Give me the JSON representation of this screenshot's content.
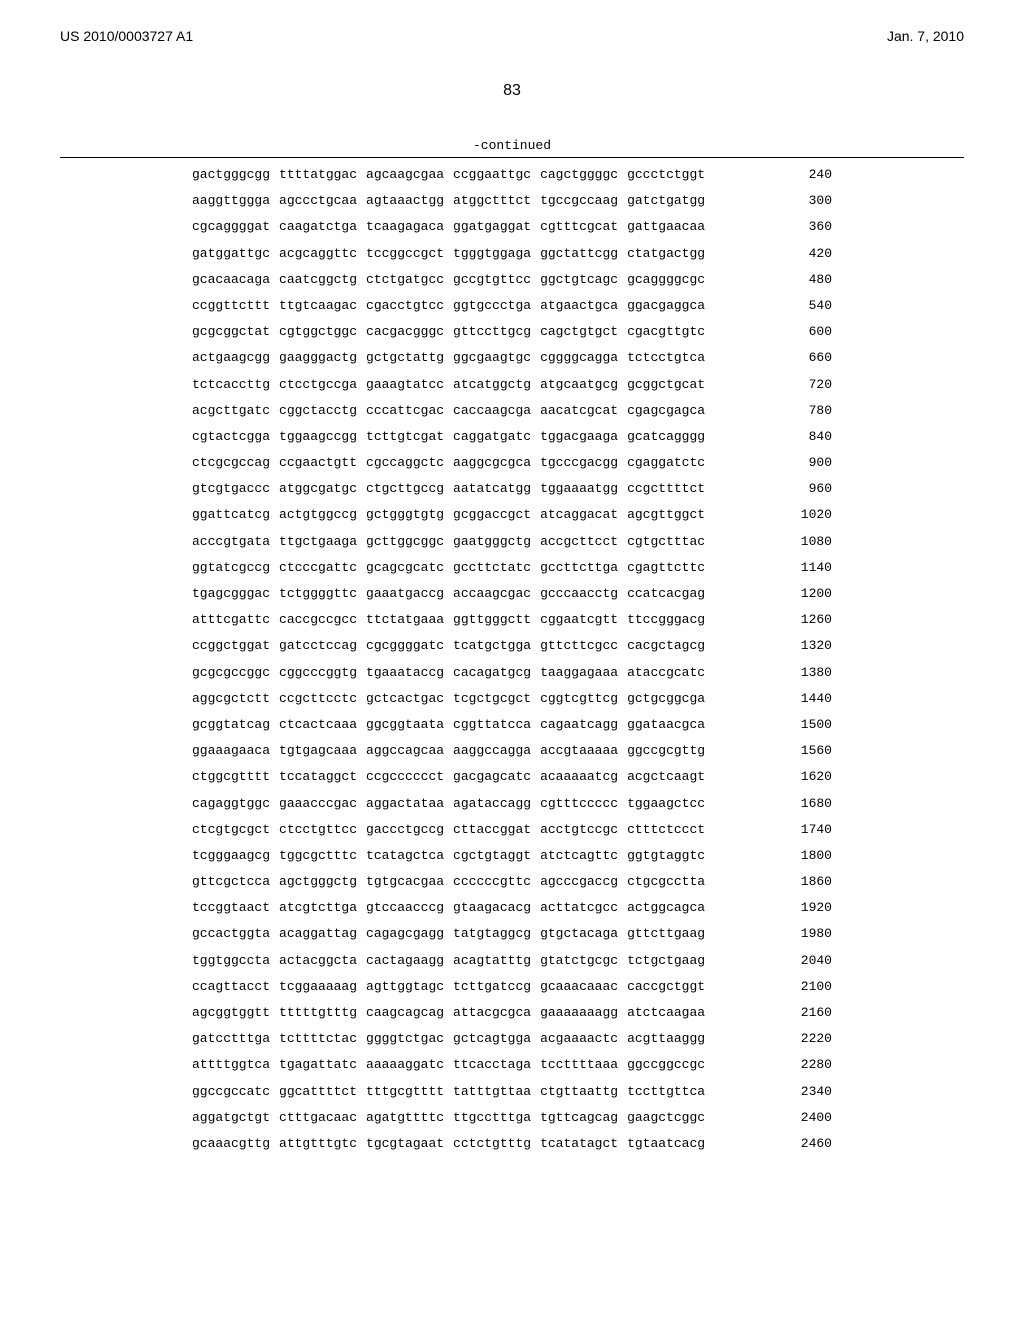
{
  "header": {
    "pub_number": "US 2010/0003727 A1",
    "pub_date": "Jan. 7, 2010"
  },
  "page_number": "83",
  "continued_label": "-continued",
  "sequence": {
    "rows": [
      {
        "groups": [
          "gactgggcgg",
          "ttttatggac",
          "agcaagcgaa",
          "ccggaattgc",
          "cagctggggc",
          "gccctctggt"
        ],
        "pos": "240"
      },
      {
        "groups": [
          "aaggttggga",
          "agccctgcaa",
          "agtaaactgg",
          "atggctttct",
          "tgccgccaag",
          "gatctgatgg"
        ],
        "pos": "300"
      },
      {
        "groups": [
          "cgcaggggat",
          "caagatctga",
          "tcaagagaca",
          "ggatgaggat",
          "cgtttcgcat",
          "gattgaacaa"
        ],
        "pos": "360"
      },
      {
        "groups": [
          "gatggattgc",
          "acgcaggttc",
          "tccggccgct",
          "tgggtggaga",
          "ggctattcgg",
          "ctatgactgg"
        ],
        "pos": "420"
      },
      {
        "groups": [
          "gcacaacaga",
          "caatcggctg",
          "ctctgatgcc",
          "gccgtgttcc",
          "ggctgtcagc",
          "gcaggggcgc"
        ],
        "pos": "480"
      },
      {
        "groups": [
          "ccggttcttt",
          "ttgtcaagac",
          "cgacctgtcc",
          "ggtgccctga",
          "atgaactgca",
          "ggacgaggca"
        ],
        "pos": "540"
      },
      {
        "groups": [
          "gcgcggctat",
          "cgtggctggc",
          "cacgacgggc",
          "gttccttgcg",
          "cagctgtgct",
          "cgacgttgtc"
        ],
        "pos": "600"
      },
      {
        "groups": [
          "actgaagcgg",
          "gaagggactg",
          "gctgctattg",
          "ggcgaagtgc",
          "cggggcagga",
          "tctcctgtca"
        ],
        "pos": "660"
      },
      {
        "groups": [
          "tctcaccttg",
          "ctcctgccga",
          "gaaagtatcc",
          "atcatggctg",
          "atgcaatgcg",
          "gcggctgcat"
        ],
        "pos": "720"
      },
      {
        "groups": [
          "acgcttgatc",
          "cggctacctg",
          "cccattcgac",
          "caccaagcga",
          "aacatcgcat",
          "cgagcgagca"
        ],
        "pos": "780"
      },
      {
        "groups": [
          "cgtactcgga",
          "tggaagccgg",
          "tcttgtcgat",
          "caggatgatc",
          "tggacgaaga",
          "gcatcagggg"
        ],
        "pos": "840"
      },
      {
        "groups": [
          "ctcgcgccag",
          "ccgaactgtt",
          "cgccaggctc",
          "aaggcgcgca",
          "tgcccgacgg",
          "cgaggatctc"
        ],
        "pos": "900"
      },
      {
        "groups": [
          "gtcgtgaccc",
          "atggcgatgc",
          "ctgcttgccg",
          "aatatcatgg",
          "tggaaaatgg",
          "ccgcttttct"
        ],
        "pos": "960"
      },
      {
        "groups": [
          "ggattcatcg",
          "actgtggccg",
          "gctgggtgtg",
          "gcggaccgct",
          "atcaggacat",
          "agcgttggct"
        ],
        "pos": "1020"
      },
      {
        "groups": [
          "acccgtgata",
          "ttgctgaaga",
          "gcttggcggc",
          "gaatgggctg",
          "accgcttcct",
          "cgtgctttac"
        ],
        "pos": "1080"
      },
      {
        "groups": [
          "ggtatcgccg",
          "ctcccgattc",
          "gcagcgcatc",
          "gccttctatc",
          "gccttcttga",
          "cgagttcttc"
        ],
        "pos": "1140"
      },
      {
        "groups": [
          "tgagcgggac",
          "tctggggttc",
          "gaaatgaccg",
          "accaagcgac",
          "gcccaacctg",
          "ccatcacgag"
        ],
        "pos": "1200"
      },
      {
        "groups": [
          "atttcgattc",
          "caccgccgcc",
          "ttctatgaaa",
          "ggttgggctt",
          "cggaatcgtt",
          "ttccgggacg"
        ],
        "pos": "1260"
      },
      {
        "groups": [
          "ccggctggat",
          "gatcctccag",
          "cgcggggatc",
          "tcatgctgga",
          "gttcttcgcc",
          "cacgctagcg"
        ],
        "pos": "1320"
      },
      {
        "groups": [
          "gcgcgccggc",
          "cggcccggtg",
          "tgaaataccg",
          "cacagatgcg",
          "taaggagaaa",
          "ataccgcatc"
        ],
        "pos": "1380"
      },
      {
        "groups": [
          "aggcgctctt",
          "ccgcttcctc",
          "gctcactgac",
          "tcgctgcgct",
          "cggtcgttcg",
          "gctgcggcga"
        ],
        "pos": "1440"
      },
      {
        "groups": [
          "gcggtatcag",
          "ctcactcaaa",
          "ggcggtaata",
          "cggttatcca",
          "cagaatcagg",
          "ggataacgca"
        ],
        "pos": "1500"
      },
      {
        "groups": [
          "ggaaagaaca",
          "tgtgagcaaa",
          "aggccagcaa",
          "aaggccagga",
          "accgtaaaaa",
          "ggccgcgttg"
        ],
        "pos": "1560"
      },
      {
        "groups": [
          "ctggcgtttt",
          "tccataggct",
          "ccgcccccct",
          "gacgagcatc",
          "acaaaaatcg",
          "acgctcaagt"
        ],
        "pos": "1620"
      },
      {
        "groups": [
          "cagaggtggc",
          "gaaacccgac",
          "aggactataa",
          "agataccagg",
          "cgtttccccc",
          "tggaagctcc"
        ],
        "pos": "1680"
      },
      {
        "groups": [
          "ctcgtgcgct",
          "ctcctgttcc",
          "gaccctgccg",
          "cttaccggat",
          "acctgtccgc",
          "ctttctccct"
        ],
        "pos": "1740"
      },
      {
        "groups": [
          "tcgggaagcg",
          "tggcgctttc",
          "tcatagctca",
          "cgctgtaggt",
          "atctcagttc",
          "ggtgtaggtc"
        ],
        "pos": "1800"
      },
      {
        "groups": [
          "gttcgctcca",
          "agctgggctg",
          "tgtgcacgaa",
          "ccccccgttc",
          "agcccgaccg",
          "ctgcgcctta"
        ],
        "pos": "1860"
      },
      {
        "groups": [
          "tccggtaact",
          "atcgtcttga",
          "gtccaacccg",
          "gtaagacacg",
          "acttatcgcc",
          "actggcagca"
        ],
        "pos": "1920"
      },
      {
        "groups": [
          "gccactggta",
          "acaggattag",
          "cagagcgagg",
          "tatgtaggcg",
          "gtgctacaga",
          "gttcttgaag"
        ],
        "pos": "1980"
      },
      {
        "groups": [
          "tggtggccta",
          "actacggcta",
          "cactagaagg",
          "acagtatttg",
          "gtatctgcgc",
          "tctgctgaag"
        ],
        "pos": "2040"
      },
      {
        "groups": [
          "ccagttacct",
          "tcggaaaaag",
          "agttggtagc",
          "tcttgatccg",
          "gcaaacaaac",
          "caccgctggt"
        ],
        "pos": "2100"
      },
      {
        "groups": [
          "agcggtggtt",
          "tttttgtttg",
          "caagcagcag",
          "attacgcgca",
          "gaaaaaaagg",
          "atctcaagaa"
        ],
        "pos": "2160"
      },
      {
        "groups": [
          "gatcctttga",
          "tcttttctac",
          "ggggtctgac",
          "gctcagtgga",
          "acgaaaactc",
          "acgttaaggg"
        ],
        "pos": "2220"
      },
      {
        "groups": [
          "attttggtca",
          "tgagattatc",
          "aaaaaggatc",
          "ttcacctaga",
          "tccttttaaa",
          "ggccggccgc"
        ],
        "pos": "2280"
      },
      {
        "groups": [
          "ggccgccatc",
          "ggcattttct",
          "tttgcgtttt",
          "tatttgttaa",
          "ctgttaattg",
          "tccttgttca"
        ],
        "pos": "2340"
      },
      {
        "groups": [
          "aggatgctgt",
          "ctttgacaac",
          "agatgttttc",
          "ttgcctttga",
          "tgttcagcag",
          "gaagctcggc"
        ],
        "pos": "2400"
      },
      {
        "groups": [
          "gcaaacgttg",
          "attgtttgtc",
          "tgcgtagaat",
          "cctctgtttg",
          "tcatatagct",
          "tgtaatcacg"
        ],
        "pos": "2460"
      }
    ]
  }
}
